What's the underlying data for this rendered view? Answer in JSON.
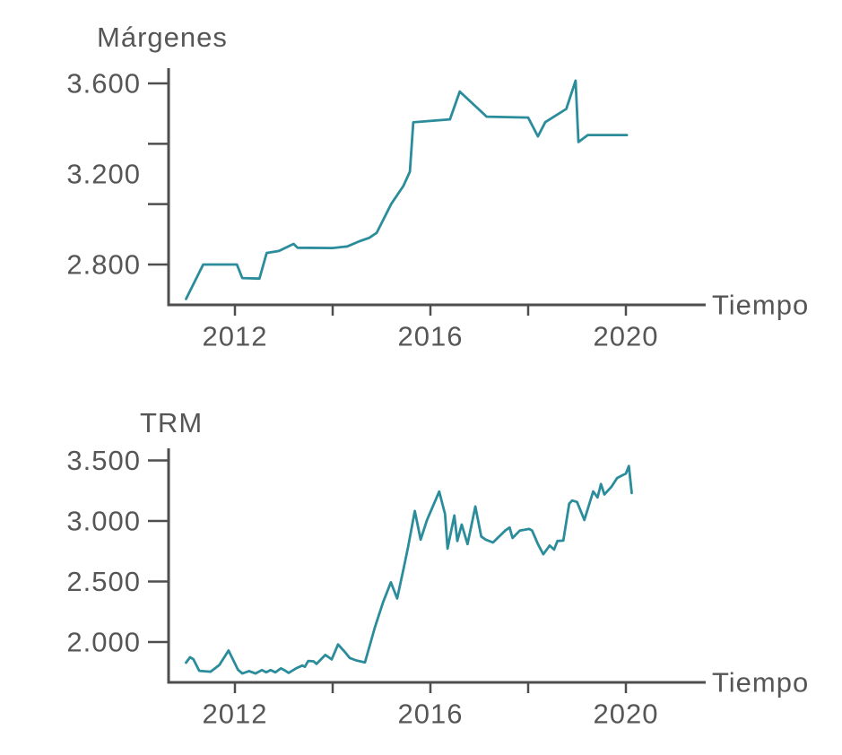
{
  "page": {
    "background": "#ffffff"
  },
  "colors": {
    "line": "#2b8c9b",
    "axis": "#4e4e4e",
    "text": "#565656"
  },
  "chart_data": [
    {
      "type": "line",
      "title": "Márgenes",
      "xlabel": "Tiempo",
      "ylabel": "",
      "legend": "none",
      "grid": false,
      "x_axis": {
        "tick_mark_values": [
          2012,
          2014,
          2016,
          2018,
          2020
        ],
        "labels": [
          {
            "text": "2012",
            "value": 2012
          },
          {
            "text": "2016",
            "value": 2016
          },
          {
            "text": "2020",
            "value": 2020
          }
        ]
      },
      "y_axis": {
        "anchor_top_value": 3600,
        "anchor_bottom_value": 2800,
        "tick_mark_values": [
          3600,
          3333.33,
          3066.67,
          2800
        ],
        "labels": [
          {
            "text": "3.600",
            "value": 3600
          },
          {
            "text": "3.200",
            "value": 3200
          },
          {
            "text": "2.800",
            "value": 2800
          }
        ]
      },
      "series": [
        {
          "name": "Márgenes",
          "color": "#2b8c9b",
          "points": [
            [
              2011.0,
              2648
            ],
            [
              2011.35,
              2800
            ],
            [
              2012.04,
              2800
            ],
            [
              2012.15,
              2740
            ],
            [
              2012.5,
              2738
            ],
            [
              2012.65,
              2851
            ],
            [
              2012.9,
              2860
            ],
            [
              2013.2,
              2891
            ],
            [
              2013.28,
              2874
            ],
            [
              2014.0,
              2873
            ],
            [
              2014.3,
              2880
            ],
            [
              2014.55,
              2903
            ],
            [
              2014.75,
              2918
            ],
            [
              2014.9,
              2940
            ],
            [
              2015.2,
              3068
            ],
            [
              2015.45,
              3148
            ],
            [
              2015.58,
              3210
            ],
            [
              2015.65,
              3428
            ],
            [
              2016.4,
              3441
            ],
            [
              2016.6,
              3564
            ],
            [
              2017.15,
              3453
            ],
            [
              2018.0,
              3449
            ],
            [
              2018.2,
              3366
            ],
            [
              2018.35,
              3429
            ],
            [
              2018.78,
              3487
            ],
            [
              2018.97,
              3612
            ],
            [
              2019.03,
              3341
            ],
            [
              2019.22,
              3372
            ],
            [
              2020.02,
              3372
            ]
          ]
        }
      ]
    },
    {
      "type": "line",
      "title": "TRM",
      "xlabel": "Tiempo",
      "ylabel": "",
      "legend": "none",
      "grid": false,
      "x_axis": {
        "tick_mark_values": [
          2012,
          2014,
          2016,
          2018,
          2020
        ],
        "labels": [
          {
            "text": "2012",
            "value": 2012
          },
          {
            "text": "2016",
            "value": 2016
          },
          {
            "text": "2020",
            "value": 2020
          }
        ]
      },
      "y_axis": {
        "anchor_top_value": 3500,
        "anchor_bottom_value": 2000,
        "tick_mark_values": [
          3500,
          3000,
          2500,
          2000
        ],
        "labels": [
          {
            "text": "3.500",
            "value": 3500
          },
          {
            "text": "3.000",
            "value": 3000
          },
          {
            "text": "2.500",
            "value": 2500
          },
          {
            "text": "2.000",
            "value": 2000
          }
        ]
      },
      "series": [
        {
          "name": "TRM",
          "color": "#2b8c9b",
          "points": [
            [
              2011.0,
              1830
            ],
            [
              2011.08,
              1874
            ],
            [
              2011.15,
              1858
            ],
            [
              2011.27,
              1762
            ],
            [
              2011.5,
              1755
            ],
            [
              2011.68,
              1810
            ],
            [
              2011.87,
              1930
            ],
            [
              2012.06,
              1772
            ],
            [
              2012.15,
              1740
            ],
            [
              2012.29,
              1760
            ],
            [
              2012.42,
              1740
            ],
            [
              2012.55,
              1768
            ],
            [
              2012.64,
              1750
            ],
            [
              2012.73,
              1768
            ],
            [
              2012.83,
              1750
            ],
            [
              2012.94,
              1782
            ],
            [
              2013.01,
              1768
            ],
            [
              2013.1,
              1745
            ],
            [
              2013.25,
              1782
            ],
            [
              2013.38,
              1806
            ],
            [
              2013.43,
              1795
            ],
            [
              2013.5,
              1844
            ],
            [
              2013.61,
              1841
            ],
            [
              2013.67,
              1819
            ],
            [
              2013.85,
              1893
            ],
            [
              2013.98,
              1856
            ],
            [
              2014.11,
              1980
            ],
            [
              2014.25,
              1918
            ],
            [
              2014.35,
              1868
            ],
            [
              2014.48,
              1848
            ],
            [
              2014.66,
              1832
            ],
            [
              2014.86,
              2117
            ],
            [
              2015.03,
              2327
            ],
            [
              2015.19,
              2493
            ],
            [
              2015.32,
              2360
            ],
            [
              2015.45,
              2604
            ],
            [
              2015.54,
              2778
            ],
            [
              2015.68,
              3082
            ],
            [
              2015.8,
              2846
            ],
            [
              2015.93,
              3008
            ],
            [
              2016.18,
              3243
            ],
            [
              2016.3,
              3057
            ],
            [
              2016.35,
              2772
            ],
            [
              2016.49,
              3045
            ],
            [
              2016.55,
              2834
            ],
            [
              2016.64,
              2970
            ],
            [
              2016.76,
              2809
            ],
            [
              2016.92,
              3119
            ],
            [
              2017.04,
              2872
            ],
            [
              2017.13,
              2846
            ],
            [
              2017.28,
              2822
            ],
            [
              2017.53,
              2921
            ],
            [
              2017.62,
              2946
            ],
            [
              2017.68,
              2859
            ],
            [
              2017.83,
              2921
            ],
            [
              2018.02,
              2934
            ],
            [
              2018.08,
              2921
            ],
            [
              2018.2,
              2809
            ],
            [
              2018.31,
              2725
            ],
            [
              2018.44,
              2797
            ],
            [
              2018.53,
              2764
            ],
            [
              2018.6,
              2835
            ],
            [
              2018.72,
              2838
            ],
            [
              2018.84,
              3144
            ],
            [
              2018.9,
              3169
            ],
            [
              2019.0,
              3157
            ],
            [
              2019.15,
              3008
            ],
            [
              2019.33,
              3244
            ],
            [
              2019.42,
              3194
            ],
            [
              2019.49,
              3305
            ],
            [
              2019.56,
              3219
            ],
            [
              2019.7,
              3281
            ],
            [
              2019.82,
              3355
            ],
            [
              2019.94,
              3380
            ],
            [
              2020.0,
              3392
            ],
            [
              2020.06,
              3454
            ],
            [
              2020.12,
              3231
            ]
          ]
        }
      ]
    }
  ]
}
